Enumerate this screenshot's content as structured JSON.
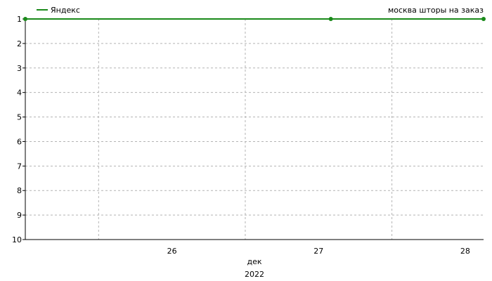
{
  "chart_data": {
    "type": "line",
    "title": "москва шторы на заказ",
    "legend_position": "top-left",
    "grid": true,
    "x_axis": {
      "ticks": [
        "26",
        "27",
        "28"
      ],
      "label": "дек",
      "sublabel": "2022",
      "range": [
        "2022-12-25 12:00",
        "2022-12-28 15:00"
      ]
    },
    "y_axis": {
      "ticks": [
        "1",
        "2",
        "3",
        "4",
        "5",
        "6",
        "7",
        "8",
        "9",
        "10"
      ],
      "range": [
        1,
        10
      ],
      "inverted": true
    },
    "series": [
      {
        "name": "Яндекс",
        "color": "#1a8a1a",
        "points": [
          {
            "x": "2022-12-25 12:00",
            "y": 1
          },
          {
            "x": "2022-12-27 14:00",
            "y": 1
          },
          {
            "x": "2022-12-28 15:00",
            "y": 1
          }
        ]
      }
    ]
  }
}
